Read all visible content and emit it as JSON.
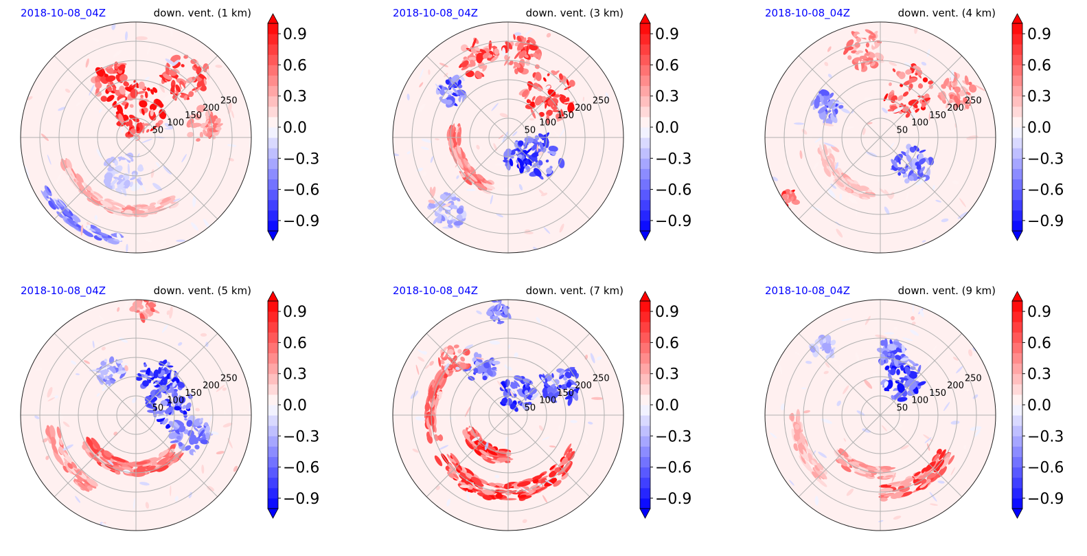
{
  "chart_data": {
    "type": "heatmap",
    "projection": "polar",
    "layout": {
      "rows": 2,
      "cols": 3
    },
    "colormap": [
      "#0000ff",
      "#ffffff",
      "#ff0000"
    ],
    "colorbar": {
      "range": [
        -1.0,
        1.0
      ],
      "ticks": [
        "0.9",
        "0.6",
        "0.3",
        "0.0",
        "−0.3",
        "−0.6",
        "−0.9"
      ],
      "tick_values": [
        0.9,
        0.6,
        0.3,
        0.0,
        -0.3,
        -0.6,
        -0.9
      ],
      "levels": 20,
      "extend": "both"
    },
    "radial_axis": {
      "range": [
        0,
        300
      ],
      "ticks": [
        "50",
        "100",
        "150",
        "200",
        "250"
      ],
      "tick_values": [
        50,
        100,
        150,
        200,
        250
      ]
    },
    "panels": [
      {
        "time_label": "2018-10-08_04Z",
        "title": "down. vent. (1 km)",
        "seed": 11,
        "features": [
          {
            "type": "blob",
            "sign": 1,
            "az": 80,
            "r": 70,
            "size": 70,
            "strength": 1.0
          },
          {
            "type": "blob",
            "sign": 1,
            "az": 110,
            "r": 150,
            "size": 55,
            "strength": 0.95
          },
          {
            "type": "blob",
            "sign": 1,
            "az": 50,
            "r": 200,
            "size": 60,
            "strength": 0.8
          },
          {
            "type": "blob",
            "sign": 1,
            "az": 10,
            "r": 180,
            "size": 45,
            "strength": 0.6
          },
          {
            "type": "arc",
            "sign": 1,
            "az0": 200,
            "az1": 300,
            "r": 190,
            "width": 25,
            "strength": 0.4
          },
          {
            "type": "arc",
            "sign": -1,
            "az0": 210,
            "az1": 260,
            "r": 270,
            "width": 25,
            "strength": 0.6
          },
          {
            "type": "blob",
            "sign": -1,
            "az": 250,
            "r": 100,
            "size": 50,
            "strength": 0.25
          }
        ]
      },
      {
        "time_label": "2018-10-08_04Z",
        "title": "down. vent. (3 km)",
        "seed": 23,
        "features": [
          {
            "type": "blob",
            "sign": 1,
            "az": 45,
            "r": 150,
            "size": 70,
            "strength": 1.0
          },
          {
            "type": "blob",
            "sign": 1,
            "az": 80,
            "r": 220,
            "size": 50,
            "strength": 0.8
          },
          {
            "type": "blob",
            "sign": 1,
            "az": 110,
            "r": 220,
            "size": 50,
            "strength": 0.8
          },
          {
            "type": "blob",
            "sign": -1,
            "az": 330,
            "r": 100,
            "size": 55,
            "strength": 0.9
          },
          {
            "type": "blob",
            "sign": -1,
            "az": 300,
            "r": 60,
            "size": 40,
            "strength": 1.0
          },
          {
            "type": "arc",
            "sign": 1,
            "az0": 170,
            "az1": 250,
            "r": 140,
            "width": 30,
            "strength": 0.6
          },
          {
            "type": "blob",
            "sign": -1,
            "az": 140,
            "r": 190,
            "size": 35,
            "strength": 0.8
          },
          {
            "type": "blob",
            "sign": -1,
            "az": 230,
            "r": 250,
            "size": 45,
            "strength": 0.4
          }
        ]
      },
      {
        "time_label": "2018-10-08_04Z",
        "title": "down. vent. (4 km)",
        "seed": 37,
        "features": [
          {
            "type": "blob",
            "sign": 1,
            "az": 60,
            "r": 140,
            "size": 65,
            "strength": 0.9
          },
          {
            "type": "blob",
            "sign": 1,
            "az": 100,
            "r": 230,
            "size": 50,
            "strength": 0.6
          },
          {
            "type": "blob",
            "sign": 1,
            "az": 30,
            "r": 230,
            "size": 45,
            "strength": 0.5
          },
          {
            "type": "blob",
            "sign": -1,
            "az": 320,
            "r": 110,
            "size": 50,
            "strength": 0.7
          },
          {
            "type": "blob",
            "sign": -1,
            "az": 150,
            "r": 160,
            "size": 40,
            "strength": 0.7
          },
          {
            "type": "arc",
            "sign": 1,
            "az0": 190,
            "az1": 260,
            "r": 150,
            "width": 30,
            "strength": 0.3
          },
          {
            "type": "blob",
            "sign": 1,
            "az": 215,
            "r": 290,
            "size": 25,
            "strength": 0.9
          }
        ]
      },
      {
        "time_label": "2018-10-08_04Z",
        "title": "down. vent. (5 km)",
        "seed": 41,
        "features": [
          {
            "type": "blob",
            "sign": -1,
            "az": 20,
            "r": 90,
            "size": 60,
            "strength": 0.9
          },
          {
            "type": "blob",
            "sign": -1,
            "az": 60,
            "r": 110,
            "size": 50,
            "strength": 0.9
          },
          {
            "type": "blob",
            "sign": -1,
            "az": 340,
            "r": 150,
            "size": 50,
            "strength": 0.6
          },
          {
            "type": "arc",
            "sign": 1,
            "az0": 210,
            "az1": 320,
            "r": 140,
            "width": 35,
            "strength": 0.7
          },
          {
            "type": "arc",
            "sign": 1,
            "az0": 190,
            "az1": 240,
            "r": 220,
            "width": 30,
            "strength": 0.5
          },
          {
            "type": "blob",
            "sign": 1,
            "az": 85,
            "r": 280,
            "size": 30,
            "strength": 0.6
          },
          {
            "type": "blob",
            "sign": -1,
            "az": 120,
            "r": 130,
            "size": 35,
            "strength": 0.5
          }
        ]
      },
      {
        "time_label": "2018-10-08_04Z",
        "title": "down. vent. (7 km)",
        "seed": 53,
        "features": [
          {
            "type": "arc",
            "sign": 1,
            "az0": 210,
            "az1": 330,
            "r": 200,
            "width": 45,
            "strength": 0.9
          },
          {
            "type": "arc",
            "sign": 1,
            "az0": 200,
            "az1": 270,
            "r": 110,
            "width": 35,
            "strength": 0.9
          },
          {
            "type": "arc",
            "sign": 1,
            "az0": 140,
            "az1": 200,
            "r": 200,
            "width": 30,
            "strength": 0.7
          },
          {
            "type": "blob",
            "sign": -1,
            "az": 30,
            "r": 160,
            "size": 50,
            "strength": 0.8
          },
          {
            "type": "blob",
            "sign": -1,
            "az": 70,
            "r": 60,
            "size": 45,
            "strength": 0.9
          },
          {
            "type": "blob",
            "sign": -1,
            "az": 120,
            "r": 140,
            "size": 40,
            "strength": 0.7
          },
          {
            "type": "blob",
            "sign": -1,
            "az": 95,
            "r": 270,
            "size": 30,
            "strength": 0.7
          },
          {
            "type": "blob",
            "sign": 1,
            "az": 135,
            "r": 200,
            "size": 40,
            "strength": 0.6
          }
        ]
      },
      {
        "time_label": "2018-10-08_04Z",
        "title": "down. vent. (9 km)",
        "seed": 67,
        "features": [
          {
            "type": "blob",
            "sign": -1,
            "az": 60,
            "r": 110,
            "size": 55,
            "strength": 1.0
          },
          {
            "type": "blob",
            "sign": -1,
            "az": 80,
            "r": 160,
            "size": 40,
            "strength": 0.7
          },
          {
            "type": "arc",
            "sign": 1,
            "az0": 270,
            "az1": 330,
            "r": 200,
            "width": 40,
            "strength": 0.8
          },
          {
            "type": "arc",
            "sign": 1,
            "az0": 220,
            "az1": 280,
            "r": 150,
            "width": 30,
            "strength": 0.5
          },
          {
            "type": "arc",
            "sign": 1,
            "az0": 180,
            "az1": 230,
            "r": 220,
            "width": 30,
            "strength": 0.35
          },
          {
            "type": "blob",
            "sign": -1,
            "az": 130,
            "r": 230,
            "size": 30,
            "strength": 0.35
          }
        ]
      }
    ]
  }
}
